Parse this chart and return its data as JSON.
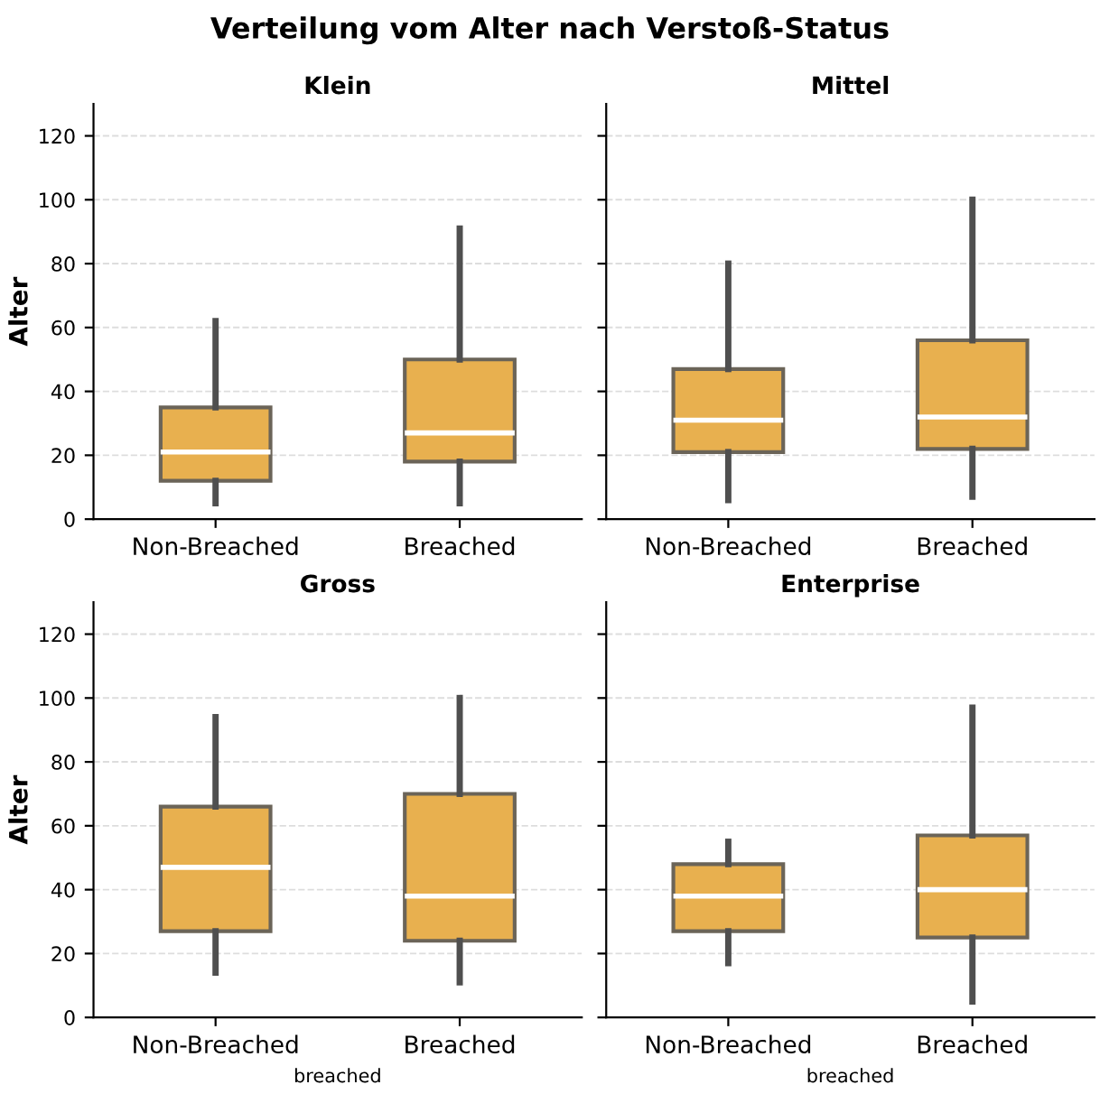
{
  "chart_data": [
    {
      "type": "box",
      "title": "Klein",
      "annotations": [
        "Verteilung vom Alter nach Verstoß-Status"
      ],
      "ylabel": "Alter",
      "categories": [
        "Non-Breached",
        "Breached"
      ],
      "ylim": [
        0,
        130
      ],
      "yticks": [
        0,
        20,
        40,
        60,
        80,
        100,
        120
      ],
      "grid": "y",
      "color": "#e8b04f",
      "boxes": [
        {
          "low": 5,
          "q1": 12,
          "median": 21,
          "q3": 35,
          "high": 62
        },
        {
          "low": 5,
          "q1": 18,
          "median": 27,
          "q3": 50,
          "high": 91
        }
      ]
    },
    {
      "type": "box",
      "title": "Mittel",
      "categories": [
        "Non-Breached",
        "Breached"
      ],
      "ylim": [
        0,
        130
      ],
      "yticks": [
        0,
        20,
        40,
        60,
        80,
        100,
        120
      ],
      "grid": "y",
      "color": "#e8b04f",
      "tick_labels": "x",
      "boxes": [
        {
          "low": 6,
          "q1": 21,
          "median": 31,
          "q3": 47,
          "high": 80
        },
        {
          "low": 7,
          "q1": 22,
          "median": 32,
          "q3": 56,
          "high": 100
        }
      ]
    },
    {
      "type": "box",
      "title": "Gross",
      "ylabel": "Alter",
      "xlabel": "breached",
      "categories": [
        "Non-Breached",
        "Breached"
      ],
      "ylim": [
        0,
        130
      ],
      "yticks": [
        0,
        20,
        40,
        60,
        80,
        100,
        120
      ],
      "grid": "y",
      "color": "#e8b04f",
      "boxes": [
        {
          "low": 14,
          "q1": 27,
          "median": 47,
          "q3": 66,
          "high": 94
        },
        {
          "low": 11,
          "q1": 24,
          "median": 38,
          "q3": 70,
          "high": 100
        }
      ]
    },
    {
      "type": "box",
      "title": "Enterprise",
      "xlabel": "breached",
      "categories": [
        "Non-Breached",
        "Breached"
      ],
      "ylim": [
        0,
        130
      ],
      "yticks": [
        0,
        20,
        40,
        60,
        80,
        100,
        120
      ],
      "grid": "y",
      "color": "#e8b04f",
      "tick_labels": "x",
      "boxes": [
        {
          "low": 17,
          "q1": 27,
          "median": 38,
          "q3": 48,
          "high": 55
        },
        {
          "low": 5,
          "q1": 25,
          "median": 40,
          "q3": 57,
          "high": 97
        }
      ]
    }
  ]
}
